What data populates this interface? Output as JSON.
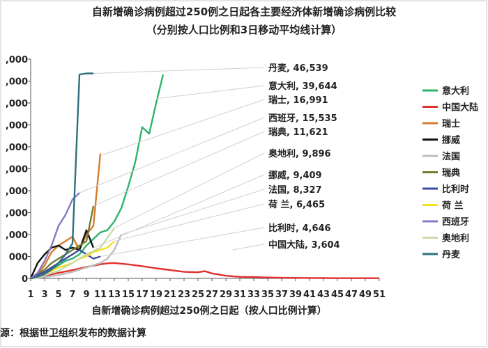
{
  "chart_data": {
    "type": "line",
    "title": "自新增确诊病例超过250例之日起各主要经济体新增确诊病例比较",
    "subtitle": "（分别按人口比例和3日移动平均线计算）",
    "xlabel": "自新增确诊病例超过250例之日起（按人口比例计算）",
    "ylabel": "",
    "x": [
      1,
      3,
      5,
      7,
      9,
      11,
      13,
      15,
      17,
      19,
      21,
      23,
      25,
      27,
      29,
      31,
      33,
      35,
      37,
      39,
      41,
      43,
      45,
      47,
      49,
      51
    ],
    "xlim": [
      1,
      51
    ],
    "y_ticks": [
      ",000",
      ",000",
      ",000",
      ",000",
      ",000",
      ",000",
      ",000",
      ",000",
      ",000",
      "000",
      "0"
    ],
    "ylim": [
      0,
      10000
    ],
    "grid": false,
    "legend_position": "right",
    "series": [
      {
        "name": "意大利",
        "color": "#2db36b",
        "x": [
          1,
          2,
          3,
          4,
          5,
          6,
          7,
          8,
          9,
          10,
          11,
          12,
          13,
          14,
          15,
          16,
          17,
          18,
          19,
          20
        ],
        "y": [
          0,
          120,
          250,
          400,
          600,
          800,
          900,
          1100,
          1500,
          1800,
          2100,
          2200,
          2600,
          3200,
          4200,
          5300,
          6900,
          6600,
          8000,
          9300
        ]
      },
      {
        "name": "中国大陆",
        "color": "#e0302f",
        "x": [
          1,
          3,
          5,
          7,
          9,
          11,
          12,
          13,
          15,
          17,
          19,
          21,
          23,
          25,
          26,
          27,
          29,
          31,
          33,
          35,
          37,
          39,
          41,
          43,
          45,
          47,
          49,
          51
        ],
        "y": [
          0,
          120,
          250,
          380,
          520,
          640,
          690,
          700,
          640,
          560,
          460,
          380,
          300,
          280,
          330,
          230,
          120,
          70,
          60,
          40,
          30,
          25,
          20,
          15,
          10,
          10,
          10,
          10
        ]
      },
      {
        "name": "瑞士",
        "color": "#d97a2b",
        "x": [
          1,
          2,
          3,
          4,
          5,
          6,
          7,
          8,
          9,
          10,
          11
        ],
        "y": [
          0,
          200,
          600,
          1200,
          1500,
          1700,
          1900,
          1300,
          2000,
          2400,
          5700
        ]
      },
      {
        "name": "挪威",
        "color": "#111111",
        "x": [
          1,
          2,
          3,
          4,
          5,
          6,
          7,
          8,
          9,
          10
        ],
        "y": [
          0,
          700,
          1100,
          1400,
          1500,
          1300,
          1400,
          1300,
          2200,
          1400
        ]
      },
      {
        "name": "法国",
        "color": "#bdbdbd",
        "x": [
          1,
          3,
          5,
          7,
          9,
          11,
          12,
          13,
          14
        ],
        "y": [
          0,
          60,
          150,
          300,
          500,
          700,
          900,
          1300,
          2000
        ]
      },
      {
        "name": "瑞典",
        "color": "#6f7f2f",
        "x": [
          1,
          2,
          3,
          4,
          5,
          6,
          7,
          8,
          9,
          10
        ],
        "y": [
          0,
          200,
          400,
          700,
          900,
          1100,
          1300,
          1500,
          1700,
          3300
        ]
      },
      {
        "name": "比利时",
        "color": "#3d4aa0",
        "x": [
          1,
          2,
          3,
          4,
          5,
          6,
          7,
          8,
          9,
          10,
          11
        ],
        "y": [
          0,
          150,
          300,
          500,
          700,
          900,
          1100,
          1300,
          1100,
          900,
          1000
        ]
      },
      {
        "name": "荷 兰",
        "color": "#f4e025",
        "x": [
          1,
          2,
          3,
          4,
          5,
          6,
          7,
          8,
          9,
          10,
          11,
          12,
          13
        ],
        "y": [
          0,
          80,
          200,
          350,
          500,
          600,
          700,
          900,
          1000,
          1200,
          1300,
          1400,
          1700
        ]
      },
      {
        "name": "西班牙",
        "color": "#8a78c0",
        "x": [
          1,
          2,
          3,
          4,
          5,
          6,
          7,
          8
        ],
        "y": [
          0,
          250,
          800,
          1500,
          2400,
          2900,
          3600,
          3900
        ]
      },
      {
        "name": "奥地利",
        "color": "#c9dba8",
        "x": [
          1,
          3,
          5,
          7,
          9,
          11,
          13
        ],
        "y": [
          0,
          150,
          350,
          700,
          1100,
          1400,
          2300
        ]
      },
      {
        "name": "丹麦",
        "color": "#2f6f7f",
        "x": [
          1,
          2,
          3,
          4,
          5,
          6,
          7,
          8,
          9,
          10
        ],
        "y": [
          0,
          80,
          200,
          400,
          700,
          1100,
          1600,
          9300,
          9350,
          9350
        ]
      }
    ],
    "annotations": [
      {
        "label": "丹麦, 46,539",
        "series": "丹麦",
        "at_x": 10,
        "at_y": 9350
      },
      {
        "label": "意大利, 39,644",
        "series": "意大利",
        "at_x": 19,
        "at_y": 8200
      },
      {
        "label": "瑞士, 16,991",
        "series": "瑞士",
        "at_x": 11,
        "at_y": 5600
      },
      {
        "label": "西班牙, 15,535",
        "series": "西班牙",
        "at_x": 8,
        "at_y": 3900
      },
      {
        "label": "瑞典, 11,621",
        "series": "瑞典",
        "at_x": 10,
        "at_y": 3300
      },
      {
        "label": "奥地利, 9,896",
        "series": "奥地利",
        "at_x": 13,
        "at_y": 2300
      },
      {
        "label": "挪威, 9,409",
        "series": "挪威",
        "at_x": 10,
        "at_y": 1400
      },
      {
        "label": "法国, 8,327",
        "series": "法国",
        "at_x": 14,
        "at_y": 2000
      },
      {
        "label": "荷 兰, 6,465",
        "series": "荷 兰",
        "at_x": 13,
        "at_y": 1700
      },
      {
        "label": "比利时, 4,646",
        "series": "比利时",
        "at_x": 11,
        "at_y": 1000
      },
      {
        "label": "中国大陆, 3,604",
        "series": "中国大陆",
        "at_x": 30,
        "at_y": 1300
      }
    ]
  },
  "source": "源：根据世卫组织发布的数据计算"
}
